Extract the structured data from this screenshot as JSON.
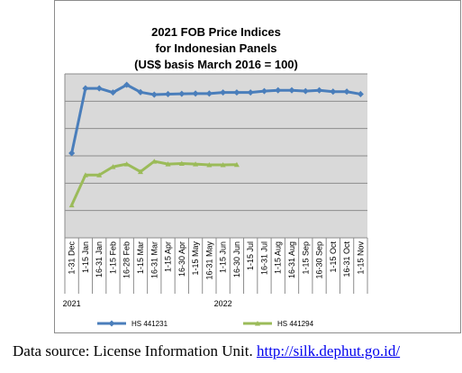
{
  "chart_data": {
    "type": "line",
    "title": [
      "2021 FOB Price Indices",
      "for Indonesian Panels",
      "(US$ basis March 2016 = 100)"
    ],
    "xlabel": "",
    "ylabel": "",
    "ylim": [
      80,
      140
    ],
    "yticks": [
      80,
      90,
      100,
      110,
      120,
      130,
      140
    ],
    "grid": true,
    "legend_position": "bottom",
    "categories": [
      "1-31 Dec",
      "1-15 Jan",
      "16-31 Jan",
      "1-15 Feb",
      "16-28 Feb",
      "1-15 Mar",
      "16-31 Mar",
      "1-15 Apr",
      "16-30 Apr",
      "1-15 May",
      "16-31 May",
      "1-15 Jun",
      "16-30 Jun",
      "1-15 Jul",
      "16-31 Jul",
      "1-15 Aug",
      "16-31 Aug",
      "1-15 Sep",
      "16-30 Sep",
      "1-15 Oct",
      "16-31 Oct",
      "1-15 Nov"
    ],
    "year_labels": [
      {
        "label": "2021",
        "category_index": 0
      },
      {
        "label": "2022",
        "category_index": 11
      }
    ],
    "series": [
      {
        "name": "HS 441231",
        "color": "#4a7ebb",
        "values": [
          111,
          134.7,
          134.7,
          133.2,
          136,
          133.3,
          132.4,
          132.6,
          132.7,
          132.8,
          132.8,
          133.2,
          133.2,
          133.2,
          133.7,
          134,
          134,
          133.7,
          134,
          133.5,
          133.5,
          132.6
        ]
      },
      {
        "name": "HS 441294",
        "color": "#9bbb59",
        "values": [
          92,
          103,
          103,
          106,
          107,
          104.2,
          108,
          107,
          107.2,
          107,
          106.7,
          106.7,
          106.8,
          null,
          null,
          null,
          null,
          null,
          null,
          null,
          null,
          null
        ]
      }
    ]
  },
  "source": {
    "prefix": "Data source: License Information Unit. ",
    "link_text": "http://silk.dephut.go.id/"
  }
}
